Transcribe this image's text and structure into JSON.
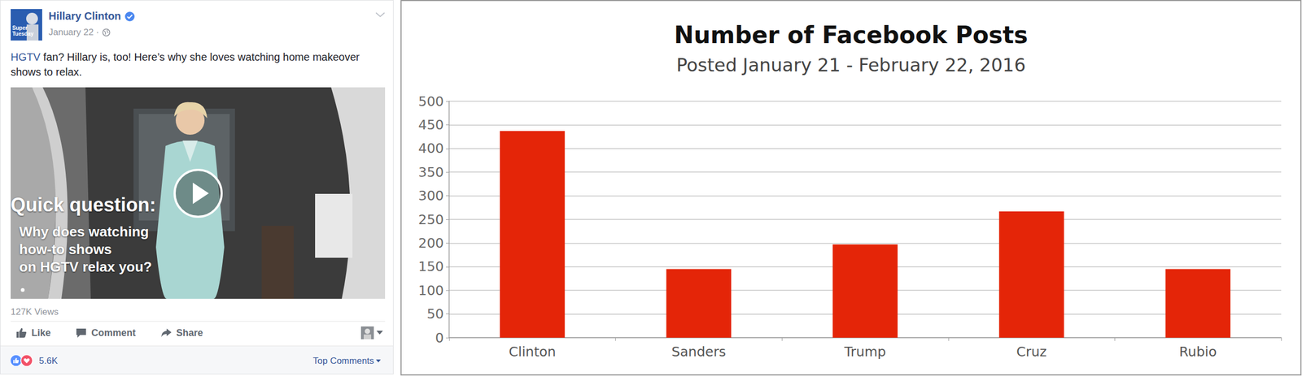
{
  "post": {
    "avatar_text": "Super Tuesday",
    "author": "Hillary Clinton",
    "date": "January 22 ·",
    "text": {
      "link": "HGTV",
      "rest": " fan? Hillary is, too! Here’s why she loves watching home makeover shows to relax."
    },
    "video": {
      "heading": "Quick question:",
      "lines": [
        "Why does watching",
        "how-to shows",
        "on HGTV relax you?"
      ]
    },
    "views": "127K Views",
    "actions": [
      "Like",
      "Comment",
      "Share"
    ],
    "reactions": "5.6K",
    "comments_sort": "Top Comments"
  },
  "chart_data": {
    "type": "bar",
    "title": "Number of Facebook Posts",
    "subtitle": "Posted January 21 - February 22, 2016",
    "categories": [
      "Clinton",
      "Sanders",
      "Trump",
      "Cruz",
      "Rubio"
    ],
    "values": [
      437,
      145,
      197,
      267,
      145
    ],
    "color": "#e42508",
    "ylim": [
      0,
      500
    ],
    "yticks": [
      0,
      50,
      100,
      150,
      200,
      250,
      300,
      350,
      400,
      450,
      500
    ],
    "grid": true
  }
}
